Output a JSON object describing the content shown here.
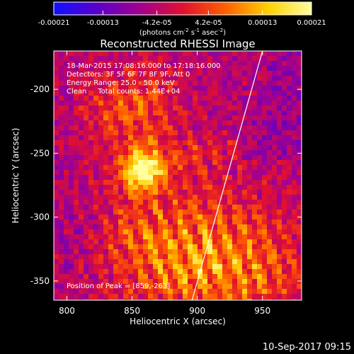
{
  "chart_data": {
    "type": "heatmap",
    "title": "Reconstructed RHESSI Image",
    "xlabel": "Heliocentric X (arcsec)",
    "ylabel": "Heliocentric Y (arcsec)",
    "xlim": [
      790,
      980
    ],
    "ylim": [
      -365,
      -170
    ],
    "xticks": [
      "800",
      "850",
      "900",
      "950"
    ],
    "xtick_values": [
      800,
      850,
      900,
      950
    ],
    "yticks": [
      "-200",
      "-250",
      "-300",
      "-350"
    ],
    "ytick_values": [
      -200,
      -250,
      -300,
      -350
    ],
    "colorbar": {
      "range": [
        -0.00021,
        0.00021
      ],
      "tick_labels": [
        "-0.00021",
        "-0.00013",
        "-4.2e-05",
        "4.2e-05",
        "0.00013",
        "0.00021"
      ],
      "tick_values": [
        -0.00021,
        -0.00013,
        -4.2e-05,
        4.2e-05,
        0.00013,
        0.00021
      ],
      "unit_prefix": "(photons cm",
      "unit_sup1": "-2",
      "unit_mid1": " s",
      "unit_sup2": "-1",
      "unit_mid2": " asec",
      "unit_sup3": "-2",
      "unit_suffix": ")",
      "colors": [
        "#1010ff",
        "#5a00c8",
        "#a00090",
        "#e01030",
        "#ff6000",
        "#ffd000",
        "#ffffa0"
      ]
    },
    "annotations": [
      "18-Mar-2015 17:08:16.000 to 17:18:16.000",
      "Detectors: 3F 5F 6F 7F 8F 9F, Att 0",
      "Energy Range: 25.0 - 50.0 keV",
      "Clean     Total counts: 1.44E+04"
    ],
    "peak_label": "Position of Peak = [859,-263]",
    "peak": [
      859,
      -263
    ],
    "limb_line": [
      [
        896,
        -365
      ],
      [
        950,
        -170
      ]
    ]
  },
  "footer": {
    "timestamp": "10-Sep-2017 09:15"
  }
}
